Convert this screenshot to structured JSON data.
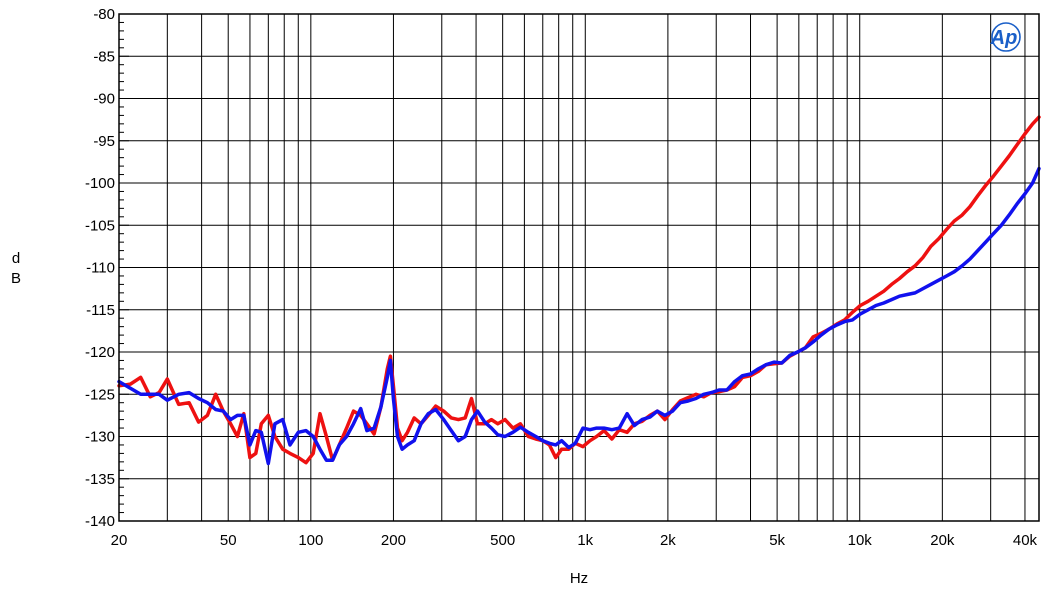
{
  "chart_data": {
    "type": "line",
    "xlabel": "Hz",
    "ylabel": "dB",
    "xscale": "log",
    "xlim": [
      20,
      45000
    ],
    "ylim": [
      -140,
      -80
    ],
    "grid": true,
    "logo": "Ap",
    "x_ticks": [
      {
        "value": 20,
        "label": "20"
      },
      {
        "value": 50,
        "label": "50"
      },
      {
        "value": 100,
        "label": "100"
      },
      {
        "value": 200,
        "label": "200"
      },
      {
        "value": 500,
        "label": "500"
      },
      {
        "value": 1000,
        "label": "1k"
      },
      {
        "value": 2000,
        "label": "2k"
      },
      {
        "value": 5000,
        "label": "5k"
      },
      {
        "value": 10000,
        "label": "10k"
      },
      {
        "value": 20000,
        "label": "20k"
      },
      {
        "value": 40000,
        "label": "40k"
      }
    ],
    "y_ticks": [
      -80,
      -85,
      -90,
      -95,
      -100,
      -105,
      -110,
      -115,
      -120,
      -125,
      -130,
      -135,
      -140
    ],
    "series": [
      {
        "color": "#ee1111",
        "points": [
          [
            20,
            -124.0
          ],
          [
            22,
            -123.8
          ],
          [
            24,
            -123.0
          ],
          [
            26,
            -125.3
          ],
          [
            28,
            -124.8
          ],
          [
            30,
            -123.2
          ],
          [
            33,
            -126.2
          ],
          [
            36,
            -126.0
          ],
          [
            39,
            -128.3
          ],
          [
            42,
            -127.5
          ],
          [
            45,
            -125.0
          ],
          [
            48,
            -127.0
          ],
          [
            51,
            -128.5
          ],
          [
            54,
            -130.0
          ],
          [
            57,
            -127.3
          ],
          [
            60,
            -132.5
          ],
          [
            63,
            -132.0
          ],
          [
            66,
            -128.5
          ],
          [
            70,
            -127.5
          ],
          [
            74,
            -130.0
          ],
          [
            79,
            -131.5
          ],
          [
            84,
            -132.0
          ],
          [
            90,
            -132.5
          ],
          [
            96,
            -133.1
          ],
          [
            102,
            -132.0
          ],
          [
            108,
            -127.3
          ],
          [
            114,
            -130.0
          ],
          [
            120,
            -132.8
          ],
          [
            127,
            -131.0
          ],
          [
            135,
            -129.0
          ],
          [
            143,
            -127.0
          ],
          [
            152,
            -127.5
          ],
          [
            160,
            -128.5
          ],
          [
            170,
            -129.7
          ],
          [
            180,
            -126.5
          ],
          [
            190,
            -122.0
          ],
          [
            195,
            -120.5
          ],
          [
            200,
            -124.0
          ],
          [
            207,
            -129.0
          ],
          [
            215,
            -130.5
          ],
          [
            225,
            -129.5
          ],
          [
            238,
            -127.8
          ],
          [
            252,
            -128.5
          ],
          [
            268,
            -127.5
          ],
          [
            285,
            -126.4
          ],
          [
            305,
            -127.0
          ],
          [
            325,
            -127.8
          ],
          [
            345,
            -128.0
          ],
          [
            365,
            -127.8
          ],
          [
            385,
            -125.5
          ],
          [
            405,
            -128.5
          ],
          [
            430,
            -128.5
          ],
          [
            455,
            -128.0
          ],
          [
            480,
            -128.5
          ],
          [
            510,
            -128.0
          ],
          [
            545,
            -129.0
          ],
          [
            580,
            -128.5
          ],
          [
            620,
            -130.0
          ],
          [
            660,
            -130.3
          ],
          [
            700,
            -130.5
          ],
          [
            740,
            -131.0
          ],
          [
            780,
            -132.5
          ],
          [
            820,
            -131.5
          ],
          [
            870,
            -131.5
          ],
          [
            920,
            -130.8
          ],
          [
            980,
            -131.2
          ],
          [
            1040,
            -130.5
          ],
          [
            1100,
            -130.0
          ],
          [
            1170,
            -129.3
          ],
          [
            1250,
            -130.3
          ],
          [
            1330,
            -129.2
          ],
          [
            1420,
            -129.5
          ],
          [
            1510,
            -128.5
          ],
          [
            1610,
            -128.2
          ],
          [
            1720,
            -127.5
          ],
          [
            1830,
            -127.0
          ],
          [
            1950,
            -128.0
          ],
          [
            2080,
            -126.8
          ],
          [
            2220,
            -125.8
          ],
          [
            2370,
            -125.4
          ],
          [
            2530,
            -125.0
          ],
          [
            2700,
            -125.3
          ],
          [
            2880,
            -124.8
          ],
          [
            3070,
            -124.7
          ],
          [
            3280,
            -124.5
          ],
          [
            3500,
            -124.1
          ],
          [
            3740,
            -123.0
          ],
          [
            4000,
            -122.8
          ],
          [
            4270,
            -122.3
          ],
          [
            4560,
            -121.5
          ],
          [
            4870,
            -121.4
          ],
          [
            5200,
            -121.3
          ],
          [
            5560,
            -120.5
          ],
          [
            5940,
            -120.0
          ],
          [
            6340,
            -119.5
          ],
          [
            6770,
            -118.2
          ],
          [
            7230,
            -117.8
          ],
          [
            7720,
            -117.3
          ],
          [
            8250,
            -116.7
          ],
          [
            8810,
            -116.2
          ],
          [
            9410,
            -115.3
          ],
          [
            10050,
            -114.5
          ],
          [
            10730,
            -114.0
          ],
          [
            11460,
            -113.4
          ],
          [
            12240,
            -112.8
          ],
          [
            13070,
            -112.0
          ],
          [
            13960,
            -111.3
          ],
          [
            14910,
            -110.5
          ],
          [
            15920,
            -109.8
          ],
          [
            17000,
            -108.8
          ],
          [
            18160,
            -107.5
          ],
          [
            19390,
            -106.6
          ],
          [
            20710,
            -105.5
          ],
          [
            22110,
            -104.5
          ],
          [
            23610,
            -103.8
          ],
          [
            25210,
            -102.8
          ],
          [
            26920,
            -101.5
          ],
          [
            28750,
            -100.3
          ],
          [
            30700,
            -99.2
          ],
          [
            32790,
            -98.0
          ],
          [
            35010,
            -96.8
          ],
          [
            37390,
            -95.5
          ],
          [
            39930,
            -94.2
          ],
          [
            42640,
            -93.0
          ],
          [
            45000,
            -92.2
          ]
        ]
      },
      {
        "color": "#1111ee",
        "points": [
          [
            20,
            -123.5
          ],
          [
            22,
            -124.3
          ],
          [
            24,
            -125.0
          ],
          [
            26,
            -125.0
          ],
          [
            28,
            -125.0
          ],
          [
            30,
            -125.7
          ],
          [
            33,
            -125.0
          ],
          [
            36,
            -124.8
          ],
          [
            39,
            -125.5
          ],
          [
            42,
            -126.0
          ],
          [
            45,
            -126.8
          ],
          [
            48,
            -127.0
          ],
          [
            51,
            -128.0
          ],
          [
            54,
            -127.5
          ],
          [
            57,
            -127.5
          ],
          [
            60,
            -131.0
          ],
          [
            63,
            -129.3
          ],
          [
            66,
            -129.5
          ],
          [
            70,
            -133.2
          ],
          [
            74,
            -128.5
          ],
          [
            79,
            -128.0
          ],
          [
            84,
            -131.0
          ],
          [
            90,
            -129.5
          ],
          [
            96,
            -129.3
          ],
          [
            102,
            -130.0
          ],
          [
            108,
            -131.5
          ],
          [
            114,
            -132.8
          ],
          [
            120,
            -132.8
          ],
          [
            127,
            -131.0
          ],
          [
            135,
            -130.0
          ],
          [
            143,
            -128.5
          ],
          [
            152,
            -126.7
          ],
          [
            160,
            -129.3
          ],
          [
            170,
            -129.0
          ],
          [
            180,
            -126.5
          ],
          [
            190,
            -123.0
          ],
          [
            195,
            -121.0
          ],
          [
            200,
            -125.5
          ],
          [
            207,
            -130.0
          ],
          [
            215,
            -131.5
          ],
          [
            225,
            -131.0
          ],
          [
            238,
            -130.5
          ],
          [
            252,
            -128.5
          ],
          [
            268,
            -127.3
          ],
          [
            285,
            -126.8
          ],
          [
            305,
            -128.0
          ],
          [
            325,
            -129.3
          ],
          [
            345,
            -130.5
          ],
          [
            365,
            -130.0
          ],
          [
            385,
            -128.0
          ],
          [
            405,
            -127.0
          ],
          [
            430,
            -128.3
          ],
          [
            455,
            -129.0
          ],
          [
            480,
            -129.8
          ],
          [
            510,
            -130.0
          ],
          [
            545,
            -129.5
          ],
          [
            580,
            -128.9
          ],
          [
            620,
            -129.5
          ],
          [
            660,
            -130.0
          ],
          [
            700,
            -130.5
          ],
          [
            740,
            -130.8
          ],
          [
            780,
            -131.0
          ],
          [
            820,
            -130.5
          ],
          [
            870,
            -131.3
          ],
          [
            920,
            -130.8
          ],
          [
            980,
            -129.0
          ],
          [
            1040,
            -129.2
          ],
          [
            1100,
            -129.0
          ],
          [
            1170,
            -129.0
          ],
          [
            1250,
            -129.2
          ],
          [
            1330,
            -129.0
          ],
          [
            1420,
            -127.3
          ],
          [
            1510,
            -128.7
          ],
          [
            1610,
            -128.0
          ],
          [
            1720,
            -127.7
          ],
          [
            1830,
            -127.0
          ],
          [
            1950,
            -127.5
          ],
          [
            2080,
            -127.0
          ],
          [
            2220,
            -126.0
          ],
          [
            2370,
            -125.8
          ],
          [
            2530,
            -125.5
          ],
          [
            2700,
            -125.0
          ],
          [
            2880,
            -124.8
          ],
          [
            3070,
            -124.5
          ],
          [
            3280,
            -124.5
          ],
          [
            3500,
            -123.5
          ],
          [
            3740,
            -122.8
          ],
          [
            4000,
            -122.6
          ],
          [
            4270,
            -122.0
          ],
          [
            4560,
            -121.5
          ],
          [
            4870,
            -121.2
          ],
          [
            5200,
            -121.3
          ],
          [
            5560,
            -120.4
          ],
          [
            5940,
            -120.0
          ],
          [
            6340,
            -119.5
          ],
          [
            6770,
            -118.8
          ],
          [
            7230,
            -118.0
          ],
          [
            7720,
            -117.3
          ],
          [
            8250,
            -116.8
          ],
          [
            8810,
            -116.4
          ],
          [
            9410,
            -116.2
          ],
          [
            10050,
            -115.5
          ],
          [
            10730,
            -115.0
          ],
          [
            11460,
            -114.5
          ],
          [
            12240,
            -114.2
          ],
          [
            13070,
            -113.8
          ],
          [
            13960,
            -113.4
          ],
          [
            14910,
            -113.2
          ],
          [
            15920,
            -113.0
          ],
          [
            17000,
            -112.5
          ],
          [
            18160,
            -112.0
          ],
          [
            19390,
            -111.5
          ],
          [
            20710,
            -111.0
          ],
          [
            22110,
            -110.5
          ],
          [
            23610,
            -109.8
          ],
          [
            25210,
            -109.0
          ],
          [
            26920,
            -108.0
          ],
          [
            28750,
            -107.0
          ],
          [
            30700,
            -106.0
          ],
          [
            32790,
            -105.0
          ],
          [
            35010,
            -103.8
          ],
          [
            37390,
            -102.5
          ],
          [
            39930,
            -101.3
          ],
          [
            42640,
            -100.0
          ],
          [
            45000,
            -98.3
          ]
        ]
      }
    ]
  }
}
